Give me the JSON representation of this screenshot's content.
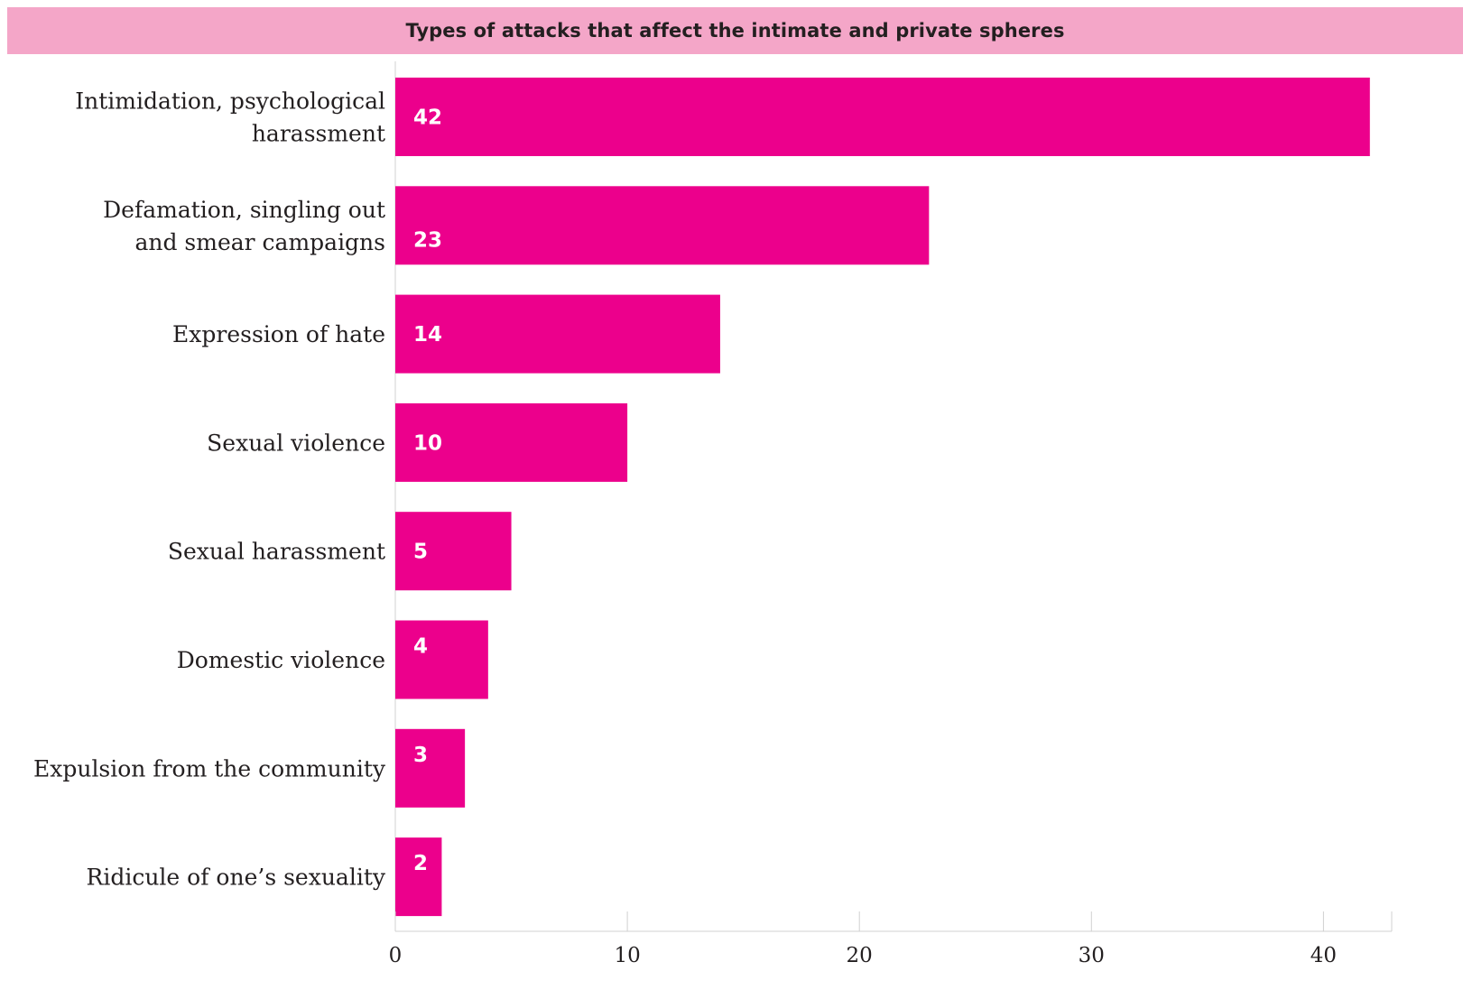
{
  "chart_data": {
    "type": "bar",
    "orientation": "horizontal",
    "title": "Types of attacks that affect the intimate and private spheres",
    "categories": [
      "Intimidation, psychological harassment",
      "Defamation, singling out and smear campaigns",
      "Expression of hate",
      "Sexual violence",
      "Sexual harassment",
      "Domestic violence",
      "Expulsion from the community",
      "Ridicule of one’s sexuality"
    ],
    "category_lines": [
      [
        "Intimidation, psychological",
        "harassment"
      ],
      [
        "Defamation, singling out",
        "and smear campaigns"
      ],
      [
        "Expression of hate"
      ],
      [
        "Sexual violence"
      ],
      [
        "Sexual harassment"
      ],
      [
        "Domestic violence"
      ],
      [
        "Expulsion from the community"
      ],
      [
        "Ridicule of one’s sexuality"
      ]
    ],
    "values": [
      42,
      23,
      14,
      10,
      5,
      4,
      3,
      2
    ],
    "value_labels": [
      "42",
      "23",
      "14",
      "10",
      "5",
      "4",
      "3",
      "2"
    ],
    "xlim": [
      0,
      42
    ],
    "xticks": [
      0,
      10,
      20,
      30,
      40
    ],
    "xtick_labels": [
      "0",
      "10",
      "20",
      "30",
      "40"
    ],
    "xlabel": "",
    "ylabel": "",
    "grid": false,
    "legend": "none",
    "bar_color": "#ec008c",
    "title_background": "#f4a6c8"
  }
}
